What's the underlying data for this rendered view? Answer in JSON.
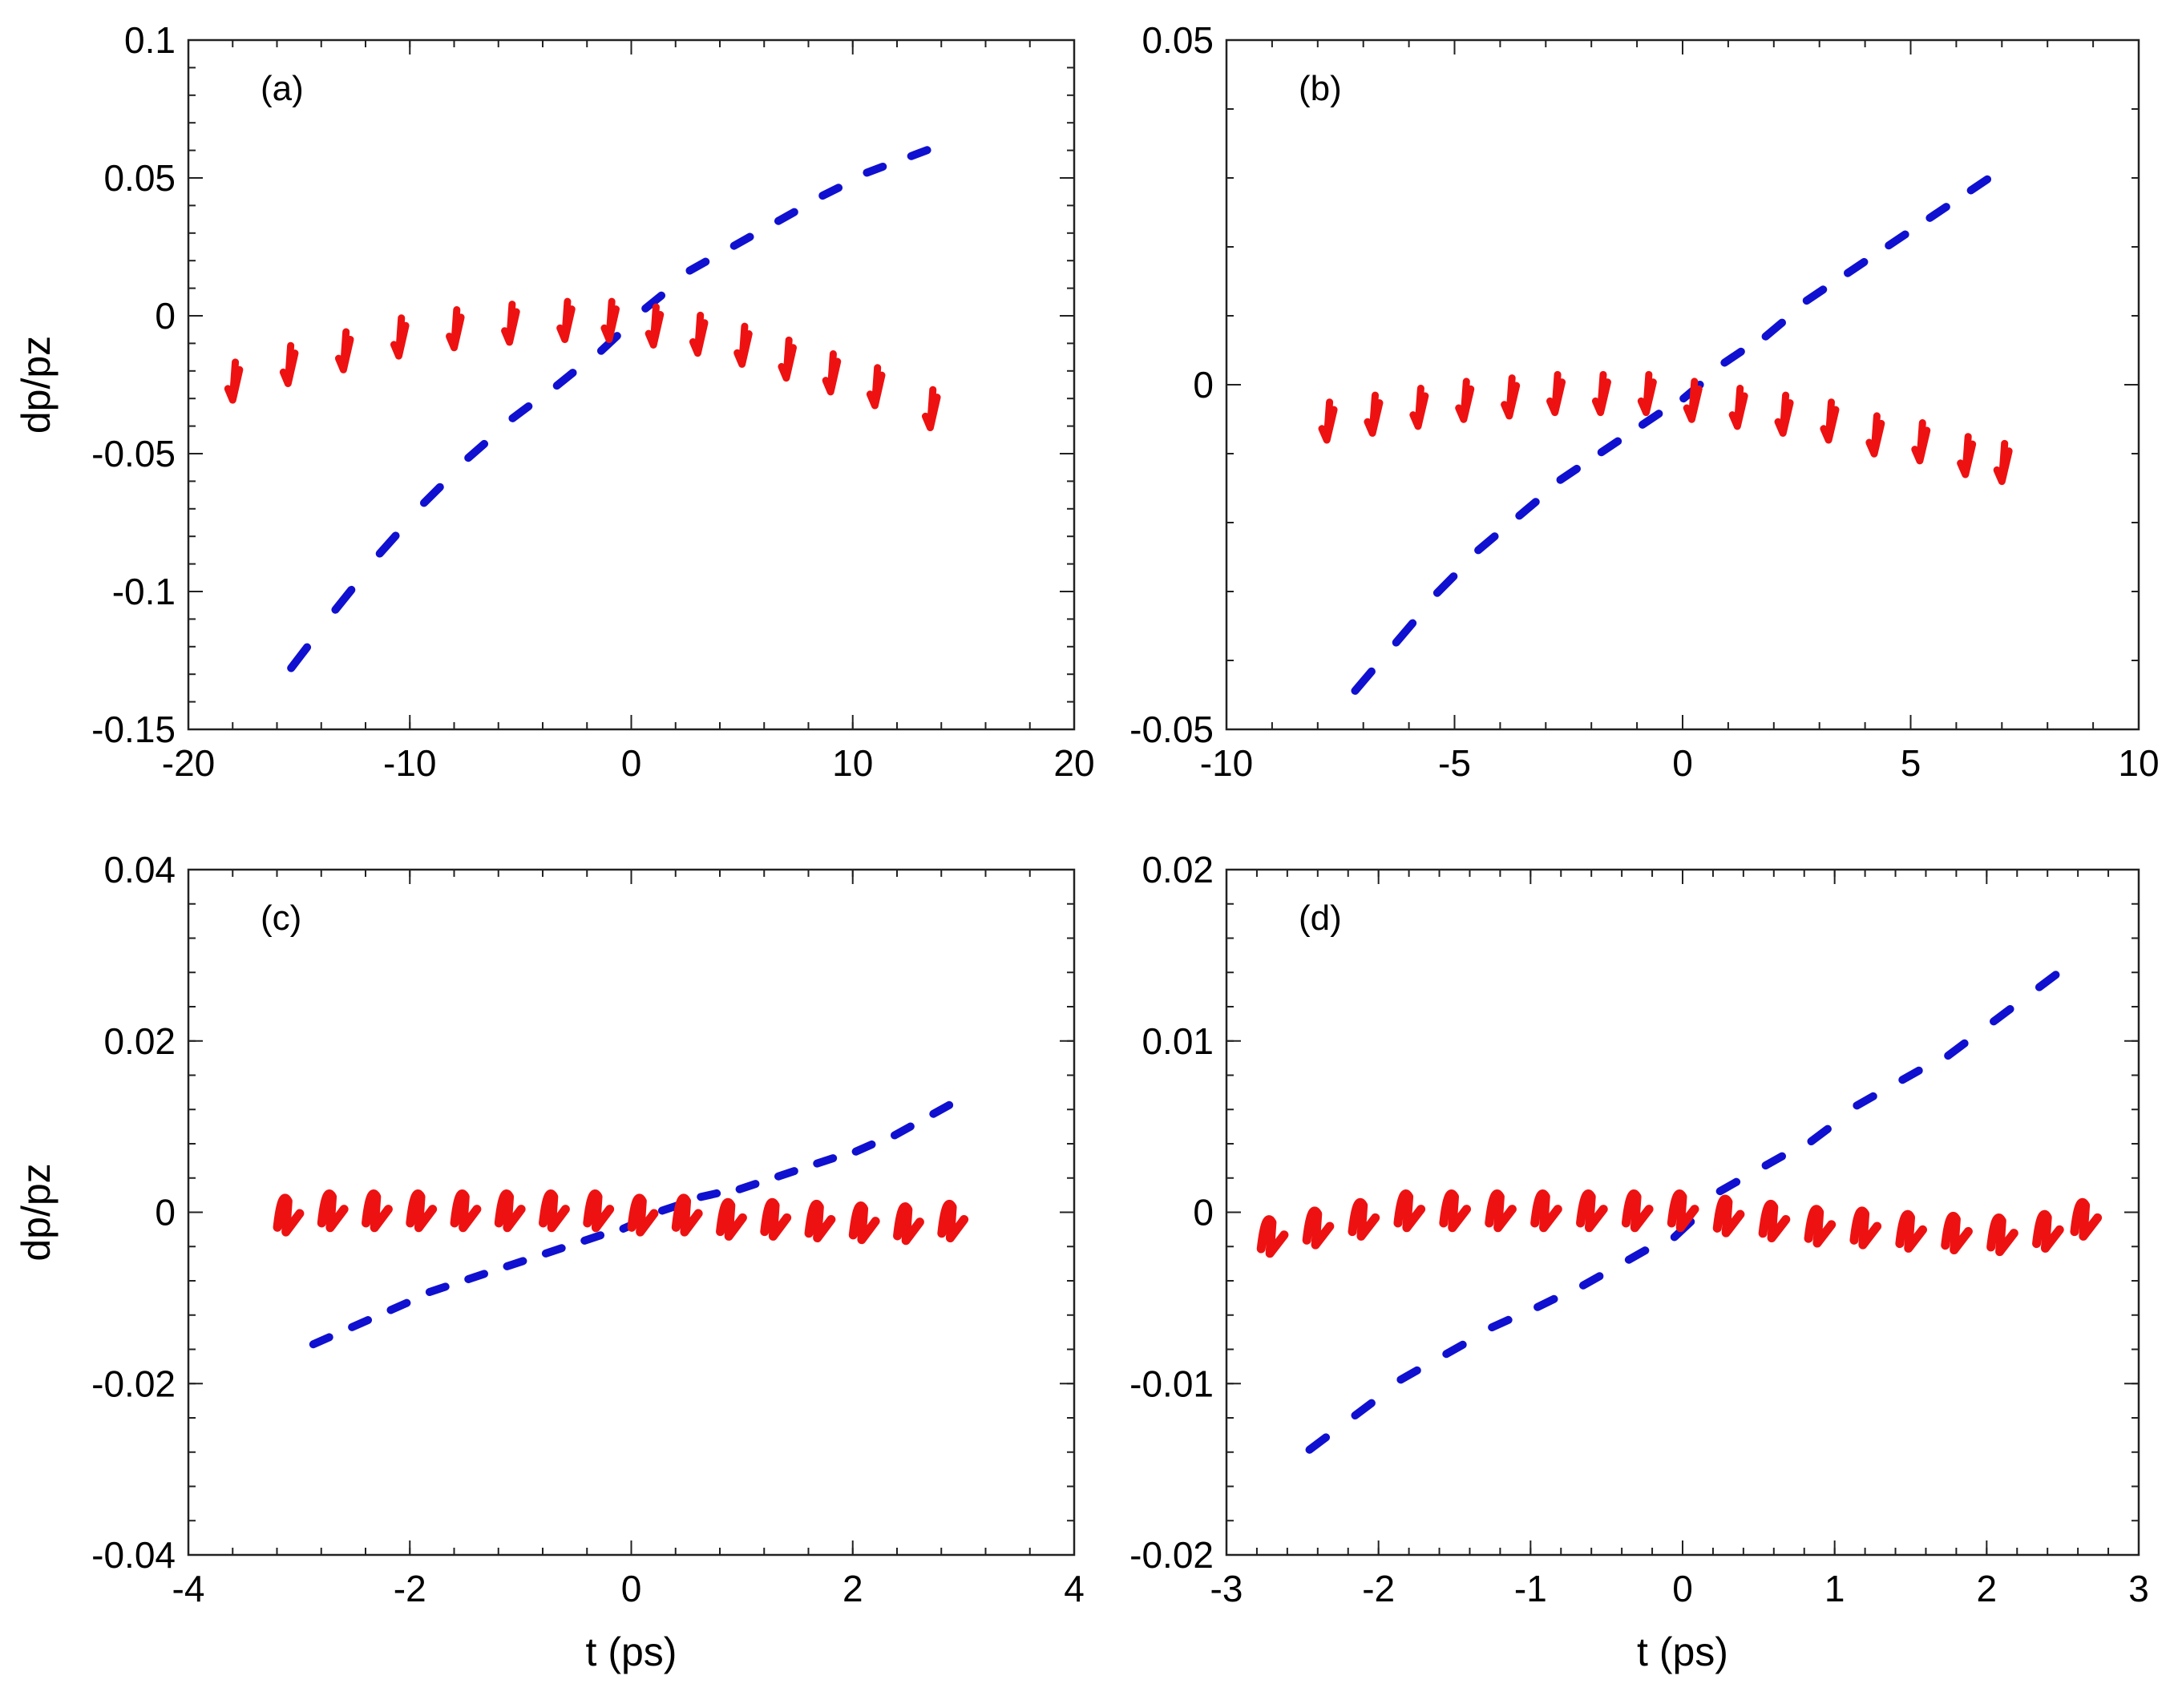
{
  "chart_data": [
    {
      "type": "scatter",
      "panel_label": "(a)",
      "xlim": [
        -20,
        20
      ],
      "ylim": [
        -0.15,
        0.1
      ],
      "xticks": [
        -20,
        -10,
        0,
        10,
        20
      ],
      "xtick_labels": [
        "-20",
        "-10",
        "0",
        "10",
        "20"
      ],
      "yticks": [
        -0.15,
        -0.1,
        -0.05,
        0,
        0.05,
        0.1
      ],
      "ytick_labels": [
        "-0.15",
        "-0.1",
        "-0.05",
        "0",
        "0.05",
        "0.1"
      ],
      "xlabel": "",
      "ylabel": "dp/pz",
      "series": [
        {
          "name": "blue",
          "color": "#1010d0",
          "style": "dash",
          "x": [
            -15,
            -13,
            -11,
            -9,
            -7,
            -5,
            -3,
            -1,
            1,
            3,
            5,
            7,
            9,
            11,
            13
          ],
          "y": [
            -0.124,
            -0.103,
            -0.083,
            -0.065,
            -0.049,
            -0.035,
            -0.023,
            -0.01,
            0.005,
            0.018,
            0.027,
            0.036,
            0.045,
            0.053,
            0.059
          ]
        },
        {
          "name": "red",
          "color": "#ee1111",
          "style": "hook",
          "x": [
            -18,
            -15.5,
            -13,
            -10.5,
            -8,
            -5.5,
            -3,
            -1,
            1,
            3,
            5,
            7,
            9,
            11,
            13.5
          ],
          "y": [
            -0.023,
            -0.017,
            -0.012,
            -0.007,
            -0.004,
            -0.002,
            -0.001,
            -0.001,
            -0.003,
            -0.006,
            -0.01,
            -0.015,
            -0.02,
            -0.025,
            -0.033
          ]
        }
      ]
    },
    {
      "type": "scatter",
      "panel_label": "(b)",
      "xlim": [
        -10,
        10
      ],
      "ylim": [
        -0.05,
        0.05
      ],
      "xticks": [
        -10,
        -5,
        0,
        5,
        10
      ],
      "xtick_labels": [
        "-10",
        "-5",
        "0",
        "5",
        "10"
      ],
      "yticks": [
        -0.05,
        0,
        0.05
      ],
      "ytick_labels": [
        "-0.05",
        "0",
        "0.05"
      ],
      "xlabel": "",
      "ylabel": "",
      "series": [
        {
          "name": "blue",
          "color": "#1010d0",
          "style": "dash",
          "x": [
            -7,
            -6.1,
            -5.2,
            -4.3,
            -3.4,
            -2.5,
            -1.6,
            -0.7,
            0.2,
            1.1,
            2.0,
            2.9,
            3.8,
            4.7,
            5.6,
            6.5
          ],
          "y": [
            -0.043,
            -0.036,
            -0.029,
            -0.023,
            -0.018,
            -0.013,
            -0.009,
            -0.005,
            -0.001,
            0.004,
            0.008,
            0.013,
            0.017,
            0.021,
            0.025,
            0.029
          ]
        },
        {
          "name": "red",
          "color": "#ee1111",
          "style": "hook",
          "x": [
            -7.8,
            -6.8,
            -5.8,
            -4.8,
            -3.8,
            -2.8,
            -1.8,
            -0.8,
            0.2,
            1.2,
            2.2,
            3.2,
            4.2,
            5.2,
            6.2,
            7.0
          ],
          "y": [
            -0.005,
            -0.004,
            -0.003,
            -0.002,
            -0.0015,
            -0.001,
            -0.001,
            -0.001,
            -0.002,
            -0.003,
            -0.004,
            -0.005,
            -0.007,
            -0.008,
            -0.01,
            -0.011
          ]
        }
      ]
    },
    {
      "type": "scatter",
      "panel_label": "(c)",
      "xlim": [
        -4,
        4
      ],
      "ylim": [
        -0.04,
        0.04
      ],
      "xticks": [
        -4,
        -2,
        0,
        2,
        4
      ],
      "xtick_labels": [
        "-4",
        "-2",
        "0",
        "2",
        "4"
      ],
      "yticks": [
        -0.04,
        -0.02,
        0,
        0.02,
        0.04
      ],
      "ytick_labels": [
        "-0.04",
        "-0.02",
        "0",
        "0.02",
        "0.04"
      ],
      "xlabel": "t (ps)",
      "ylabel": "dp/pz",
      "series": [
        {
          "name": "blue",
          "color": "#1010d0",
          "style": "dash",
          "x": [
            -2.8,
            -2.45,
            -2.1,
            -1.75,
            -1.4,
            -1.05,
            -0.7,
            -0.35,
            0,
            0.35,
            0.7,
            1.05,
            1.4,
            1.75,
            2.1,
            2.45,
            2.8
          ],
          "y": [
            -0.015,
            -0.013,
            -0.011,
            -0.009,
            -0.0075,
            -0.006,
            -0.0045,
            -0.003,
            -0.0015,
            0.0005,
            0.002,
            0.003,
            0.0045,
            0.006,
            0.0075,
            0.0095,
            0.012
          ]
        },
        {
          "name": "red",
          "color": "#ee1111",
          "style": "sawtooth",
          "x": [
            -3.1,
            -2.7,
            -2.3,
            -1.9,
            -1.5,
            -1.1,
            -0.7,
            -0.3,
            0.1,
            0.5,
            0.9,
            1.3,
            1.7,
            2.1,
            2.5,
            2.9
          ],
          "y": [
            -0.0005,
            0,
            0,
            0,
            0,
            0,
            0,
            0,
            -0.0005,
            -0.0005,
            -0.001,
            -0.001,
            -0.0012,
            -0.0014,
            -0.0015,
            -0.0012
          ]
        }
      ]
    },
    {
      "type": "scatter",
      "panel_label": "(d)",
      "xlim": [
        -3,
        3
      ],
      "ylim": [
        -0.02,
        0.02
      ],
      "xticks": [
        -3,
        -2,
        -1,
        0,
        1,
        2,
        3
      ],
      "xtick_labels": [
        "-3",
        "-2",
        "-1",
        "0",
        "1",
        "2",
        "3"
      ],
      "yticks": [
        -0.02,
        -0.01,
        0,
        0.01,
        0.02
      ],
      "ytick_labels": [
        "-0.02",
        "-0.01",
        "0",
        "0.01",
        "0.02"
      ],
      "xlabel": "t (ps)",
      "ylabel": "",
      "series": [
        {
          "name": "blue",
          "color": "#1010d0",
          "style": "dash",
          "x": [
            -2.4,
            -2.1,
            -1.8,
            -1.5,
            -1.2,
            -0.9,
            -0.6,
            -0.3,
            0,
            0.3,
            0.6,
            0.9,
            1.2,
            1.5,
            1.8,
            2.1,
            2.4
          ],
          "y": [
            -0.0135,
            -0.0115,
            -0.0095,
            -0.008,
            -0.0065,
            -0.0053,
            -0.004,
            -0.0025,
            -0.001,
            0.0015,
            0.003,
            0.0045,
            0.0065,
            0.008,
            0.0095,
            0.0115,
            0.0135
          ]
        },
        {
          "name": "red",
          "color": "#ee1111",
          "style": "sawtooth",
          "x": [
            -2.7,
            -2.4,
            -2.1,
            -1.8,
            -1.5,
            -1.2,
            -0.9,
            -0.6,
            -0.3,
            0,
            0.3,
            0.6,
            0.9,
            1.2,
            1.5,
            1.8,
            2.1,
            2.4,
            2.65
          ],
          "y": [
            -0.0015,
            -0.001,
            -0.0005,
            0,
            0,
            0,
            0,
            0,
            0,
            0,
            -0.0003,
            -0.0006,
            -0.0009,
            -0.001,
            -0.0012,
            -0.0013,
            -0.0014,
            -0.0012,
            -0.0005
          ]
        }
      ]
    }
  ]
}
